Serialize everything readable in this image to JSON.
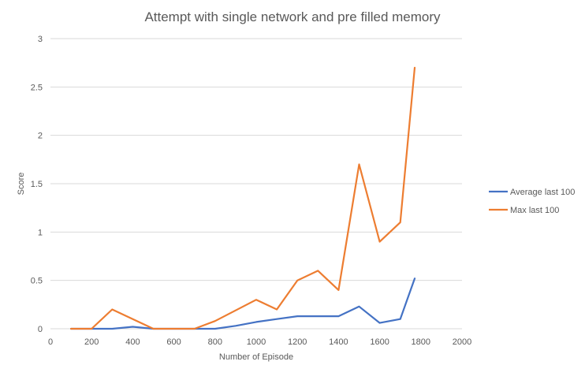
{
  "chart_data": {
    "type": "line",
    "title": "Attempt with single network and pre filled memory",
    "xlabel": "Number of Episode",
    "ylabel": "Score",
    "xlim": [
      0,
      2000
    ],
    "ylim": [
      0,
      3
    ],
    "x_ticks": [
      0,
      200,
      400,
      600,
      800,
      1000,
      1200,
      1400,
      1600,
      1800,
      2000
    ],
    "y_ticks": [
      0,
      0.5,
      1,
      1.5,
      2,
      2.5,
      3
    ],
    "y_tick_labels": [
      "0",
      "0.5",
      "1",
      "1.5",
      "2",
      "2.5",
      "3"
    ],
    "grid": "horizontal",
    "legend_position": "right",
    "series": [
      {
        "name": "Average last 100",
        "color": "#4472C4",
        "x": [
          100,
          200,
          300,
          400,
          500,
          600,
          700,
          800,
          900,
          1000,
          1100,
          1200,
          1300,
          1400,
          1500,
          1600,
          1700,
          1770
        ],
        "y": [
          0,
          0,
          0,
          0.02,
          0,
          0,
          0,
          0,
          0.03,
          0.07,
          0.1,
          0.13,
          0.13,
          0.13,
          0.23,
          0.06,
          0.1,
          0.52
        ]
      },
      {
        "name": "Max last 100",
        "color": "#ED7D31",
        "x": [
          100,
          200,
          300,
          400,
          500,
          600,
          700,
          800,
          900,
          1000,
          1100,
          1200,
          1300,
          1400,
          1500,
          1600,
          1700,
          1770
        ],
        "y": [
          0,
          0,
          0.2,
          0.1,
          0,
          0,
          0,
          0.08,
          0.19,
          0.3,
          0.2,
          0.5,
          0.6,
          0.4,
          1.7,
          0.9,
          1.1,
          2.7
        ]
      }
    ]
  }
}
